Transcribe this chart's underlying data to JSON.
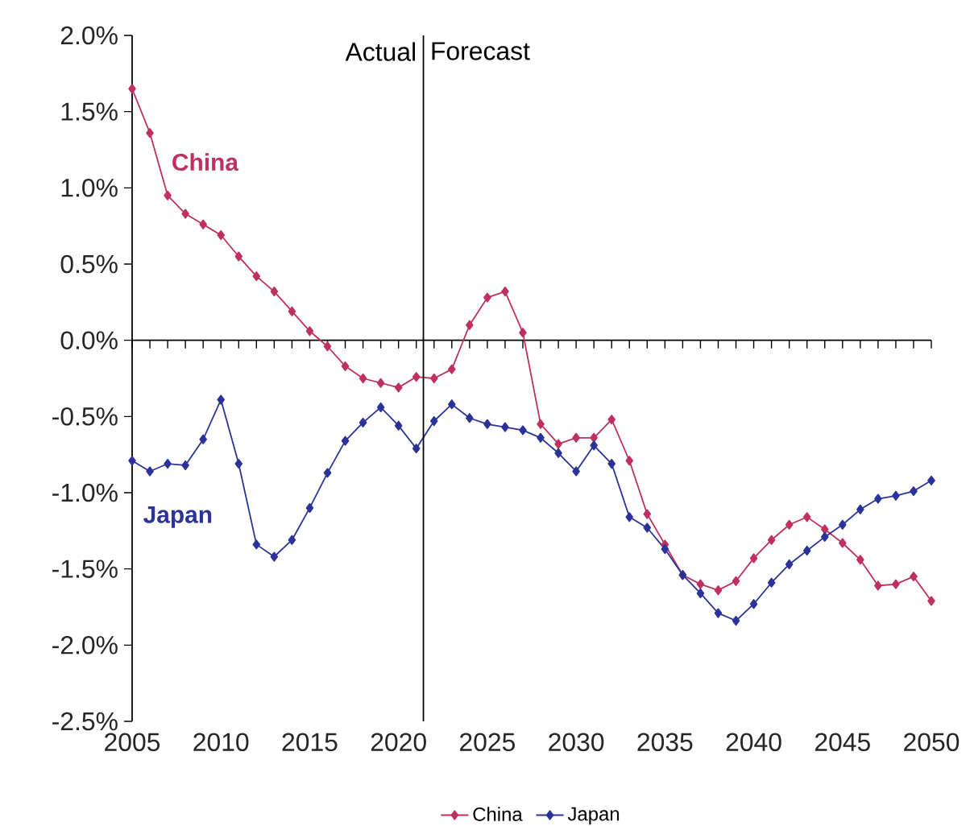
{
  "chart_data": {
    "type": "line",
    "x": [
      2005,
      2006,
      2007,
      2008,
      2009,
      2010,
      2011,
      2012,
      2013,
      2014,
      2015,
      2016,
      2017,
      2018,
      2019,
      2020,
      2021,
      2022,
      2023,
      2024,
      2025,
      2026,
      2027,
      2028,
      2029,
      2030,
      2031,
      2032,
      2033,
      2034,
      2035,
      2036,
      2037,
      2038,
      2039,
      2040,
      2041,
      2042,
      2043,
      2044,
      2045,
      2046,
      2047,
      2048,
      2049,
      2050
    ],
    "series": [
      {
        "name": "China",
        "color": "#c0305f",
        "values": [
          1.65,
          1.36,
          0.95,
          0.83,
          0.76,
          0.69,
          0.55,
          0.42,
          0.32,
          0.19,
          0.06,
          -0.04,
          -0.17,
          -0.25,
          -0.28,
          -0.31,
          -0.24,
          -0.25,
          -0.19,
          0.1,
          0.28,
          0.32,
          0.05,
          -0.55,
          -0.68,
          -0.64,
          -0.64,
          -0.52,
          -0.79,
          -1.14,
          -1.34,
          -1.54,
          -1.6,
          -1.64,
          -1.58,
          -1.43,
          -1.31,
          -1.21,
          -1.16,
          -1.24,
          -1.33,
          -1.44,
          -1.61,
          -1.6,
          -1.55,
          -1.71
        ]
      },
      {
        "name": "Japan",
        "color": "#2b3399",
        "values": [
          -0.79,
          -0.86,
          -0.81,
          -0.82,
          -0.65,
          -0.39,
          -0.81,
          -1.34,
          -1.42,
          -1.31,
          -1.1,
          -0.87,
          -0.66,
          -0.54,
          -0.44,
          -0.56,
          -0.71,
          -0.53,
          -0.42,
          -0.51,
          -0.55,
          -0.57,
          -0.59,
          -0.64,
          -0.74,
          -0.86,
          -0.69,
          -0.81,
          -1.16,
          -1.23,
          -1.37,
          -1.54,
          -1.66,
          -1.79,
          -1.84,
          -1.73,
          -1.59,
          -1.47,
          -1.38,
          -1.29,
          -1.21,
          -1.11,
          -1.04,
          -1.02,
          -0.99,
          -0.92
        ]
      }
    ],
    "xlim": [
      2005,
      2050
    ],
    "xticks": [
      2005,
      2010,
      2015,
      2020,
      2025,
      2030,
      2035,
      2040,
      2045,
      2050
    ],
    "ylim": [
      -2.5,
      2.0
    ],
    "yticks": [
      {
        "value": -2.5,
        "label": "-2.5%"
      },
      {
        "value": -2.0,
        "label": "-2.0%"
      },
      {
        "value": -1.5,
        "label": "-1.5%"
      },
      {
        "value": -1.0,
        "label": "-1.0%"
      },
      {
        "value": -0.5,
        "label": "-0.5%"
      },
      {
        "value": 0,
        "label": "0.0%"
      },
      {
        "value": 0.5,
        "label": "0.5%"
      },
      {
        "value": 1.0,
        "label": "1.0%"
      },
      {
        "value": 1.5,
        "label": "1.5%"
      },
      {
        "value": 2.0,
        "label": "2.0%"
      }
    ],
    "ref_lines": [
      {
        "axis": "x",
        "value": 2021.4,
        "color": "#000000"
      }
    ],
    "annotations": [
      "Actual",
      "Forecast"
    ],
    "marker": "diamond",
    "line_style": "solid",
    "legend": "bottom"
  }
}
